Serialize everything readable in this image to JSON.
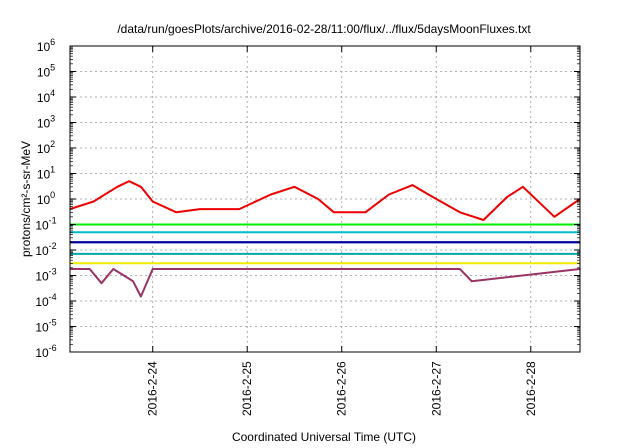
{
  "chart_data": {
    "type": "line",
    "title": "/data/run/goesPlots/archive/2016-02-28/11:00/flux/../flux/5daysMoonFluxes.txt",
    "xlabel": "Coordinated Universal Time (UTC)",
    "ylabel": "protons/cm²-s-sr-MeV",
    "yscale": "log",
    "ylim": [
      1e-06,
      1000000.0
    ],
    "xlim": [
      "2016-02-23 03:00",
      "2016-02-28 12:30"
    ],
    "grid": true,
    "y_ticks": [
      {
        "base": "10",
        "exp": "-6"
      },
      {
        "base": "10",
        "exp": "-5"
      },
      {
        "base": "10",
        "exp": "-4"
      },
      {
        "base": "10",
        "exp": "-3"
      },
      {
        "base": "10",
        "exp": "-2"
      },
      {
        "base": "10",
        "exp": "-1"
      },
      {
        "base": "10",
        "exp": "0"
      },
      {
        "base": "10",
        "exp": "1"
      },
      {
        "base": "10",
        "exp": "2"
      },
      {
        "base": "10",
        "exp": "3"
      },
      {
        "base": "10",
        "exp": "4"
      },
      {
        "base": "10",
        "exp": "5"
      },
      {
        "base": "10",
        "exp": "6"
      }
    ],
    "x_ticks": [
      "2016-2-24",
      "2016-2-25",
      "2016-2-26",
      "2016-2-27",
      "2016-2-28"
    ],
    "series": [
      {
        "color": "#ee0000",
        "x": [
          "2016-02-23 03:00",
          "2016-02-23 09:00",
          "2016-02-23 15:00",
          "2016-02-23 18:00",
          "2016-02-23 21:00",
          "2016-02-24 00:00",
          "2016-02-24 06:00",
          "2016-02-24 12:00",
          "2016-02-24 18:00",
          "2016-02-24 22:00",
          "2016-02-25 06:00",
          "2016-02-25 12:00",
          "2016-02-25 18:00",
          "2016-02-25 22:00",
          "2016-02-26 06:00",
          "2016-02-26 12:00",
          "2016-02-26 18:00",
          "2016-02-26 22:00",
          "2016-02-27 06:00",
          "2016-02-27 12:00",
          "2016-02-27 18:00",
          "2016-02-27 22:00",
          "2016-02-28 06:00",
          "2016-02-28 12:30"
        ],
        "y": [
          0.4,
          0.8,
          3,
          5,
          3,
          0.8,
          0.3,
          0.4,
          0.4,
          0.4,
          1.5,
          3,
          1,
          0.3,
          0.3,
          1.5,
          3.5,
          1.5,
          0.3,
          0.15,
          1.2,
          3,
          0.2,
          1.0
        ]
      },
      {
        "color": "#00ee00",
        "x": [
          "2016-02-23 03:00",
          "2016-02-28 12:30"
        ],
        "y": [
          0.1,
          0.1
        ]
      },
      {
        "color": "#00bbcc",
        "x": [
          "2016-02-23 03:00",
          "2016-02-28 12:30"
        ],
        "y": [
          0.05,
          0.05
        ]
      },
      {
        "color": "#0000ee",
        "x": [
          "2016-02-23 03:00",
          "2016-02-28 12:30"
        ],
        "y": [
          0.02,
          0.02
        ]
      },
      {
        "color": "#000099",
        "x": [
          "2016-02-23 03:00",
          "2016-02-28 12:30"
        ],
        "y": [
          0.02,
          0.02
        ]
      },
      {
        "color": "#00aaaa",
        "x": [
          "2016-02-23 03:00",
          "2016-02-28 12:30"
        ],
        "y": [
          0.007,
          0.007
        ]
      },
      {
        "color": "#eeee00",
        "x": [
          "2016-02-23 03:00",
          "2016-02-28 12:30"
        ],
        "y": [
          0.003,
          0.003
        ]
      },
      {
        "color": "#993366",
        "x": [
          "2016-02-23 03:00",
          "2016-02-23 08:00",
          "2016-02-23 11:00",
          "2016-02-23 14:00",
          "2016-02-23 19:00",
          "2016-02-23 21:00",
          "2016-02-24 00:00",
          "2016-02-27 06:00",
          "2016-02-27 09:00",
          "2016-02-28 12:30"
        ],
        "y": [
          0.0018,
          0.0018,
          0.0005,
          0.0018,
          0.0006,
          0.00015,
          0.0018,
          0.0018,
          0.0006,
          0.0018
        ]
      }
    ]
  }
}
